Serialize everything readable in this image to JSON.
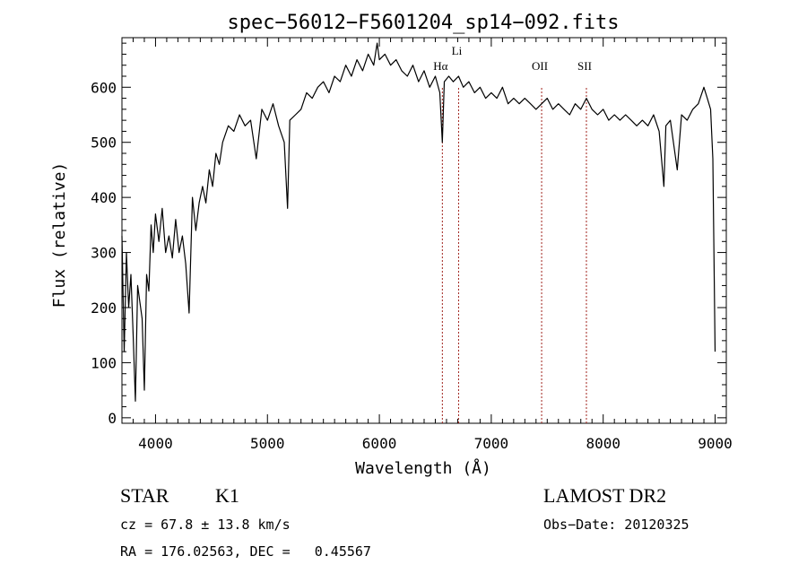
{
  "chart_data": {
    "type": "line",
    "title": "spec−56012−F5601204_sp14−092.fits",
    "xlabel": "Wavelength (Å)",
    "ylabel": "Flux (relative)",
    "xlim": [
      3700,
      9100
    ],
    "ylim": [
      -10,
      690
    ],
    "xticks": [
      4000,
      5000,
      6000,
      7000,
      8000,
      9000
    ],
    "yticks": [
      0,
      100,
      200,
      300,
      400,
      500,
      600
    ],
    "grid": false,
    "line_color": "#000000",
    "marker_color": "#a0221b",
    "lines": [
      {
        "label": "Hα",
        "x": 6563
      },
      {
        "label": "Li",
        "x": 6708
      },
      {
        "label": "OII",
        "x": 7450
      },
      {
        "label": "SII",
        "x": 7850
      }
    ],
    "series": [
      {
        "x": [
          3700,
          3720,
          3740,
          3760,
          3780,
          3800,
          3820,
          3840,
          3860,
          3880,
          3900,
          3920,
          3940,
          3960,
          3980,
          4000,
          4030,
          4060,
          4090,
          4120,
          4150,
          4180,
          4210,
          4240,
          4270,
          4300,
          4330,
          4360,
          4390,
          4420,
          4450,
          4480,
          4510,
          4540,
          4570,
          4600,
          4650,
          4700,
          4750,
          4800,
          4850,
          4900,
          4950,
          5000,
          5050,
          5100,
          5150,
          5180,
          5200,
          5250,
          5300,
          5350,
          5400,
          5450,
          5500,
          5550,
          5600,
          5650,
          5700,
          5750,
          5800,
          5850,
          5900,
          5950,
          5980,
          6000,
          6050,
          6100,
          6150,
          6200,
          6250,
          6300,
          6350,
          6400,
          6450,
          6500,
          6540,
          6563,
          6580,
          6620,
          6660,
          6708,
          6750,
          6800,
          6850,
          6900,
          6950,
          7000,
          7050,
          7100,
          7150,
          7200,
          7250,
          7300,
          7350,
          7400,
          7450,
          7500,
          7550,
          7600,
          7650,
          7700,
          7750,
          7800,
          7850,
          7900,
          7950,
          8000,
          8050,
          8100,
          8150,
          8200,
          8250,
          8300,
          8350,
          8400,
          8450,
          8500,
          8542,
          8560,
          8600,
          8662,
          8700,
          8750,
          8800,
          8850,
          8900,
          8930,
          8960,
          8980,
          9000
        ],
        "values": [
          330,
          120,
          300,
          200,
          260,
          150,
          30,
          240,
          210,
          180,
          50,
          260,
          230,
          350,
          300,
          370,
          320,
          380,
          300,
          330,
          290,
          360,
          300,
          330,
          280,
          190,
          400,
          340,
          390,
          420,
          390,
          450,
          420,
          480,
          460,
          500,
          530,
          520,
          550,
          530,
          540,
          470,
          560,
          540,
          570,
          530,
          500,
          380,
          540,
          550,
          560,
          590,
          580,
          600,
          610,
          590,
          620,
          610,
          640,
          620,
          650,
          630,
          660,
          640,
          680,
          650,
          660,
          640,
          650,
          630,
          620,
          640,
          610,
          630,
          600,
          620,
          590,
          500,
          610,
          620,
          610,
          620,
          600,
          610,
          590,
          600,
          580,
          590,
          580,
          600,
          570,
          580,
          570,
          580,
          570,
          560,
          570,
          580,
          560,
          570,
          560,
          550,
          570,
          560,
          580,
          560,
          550,
          560,
          540,
          550,
          540,
          550,
          540,
          530,
          540,
          530,
          550,
          520,
          420,
          530,
          540,
          450,
          550,
          540,
          560,
          570,
          600,
          580,
          560,
          470,
          120
        ]
      }
    ],
    "footer": {
      "object_class": "STAR",
      "subclass": "K1",
      "survey": "LAMOST DR2",
      "cz": "cz = 67.8 ± 13.8 km/s",
      "obs_date": "Obs−Date: 20120325",
      "coords": "RA = 176.02563, DEC =   0.45567"
    }
  }
}
